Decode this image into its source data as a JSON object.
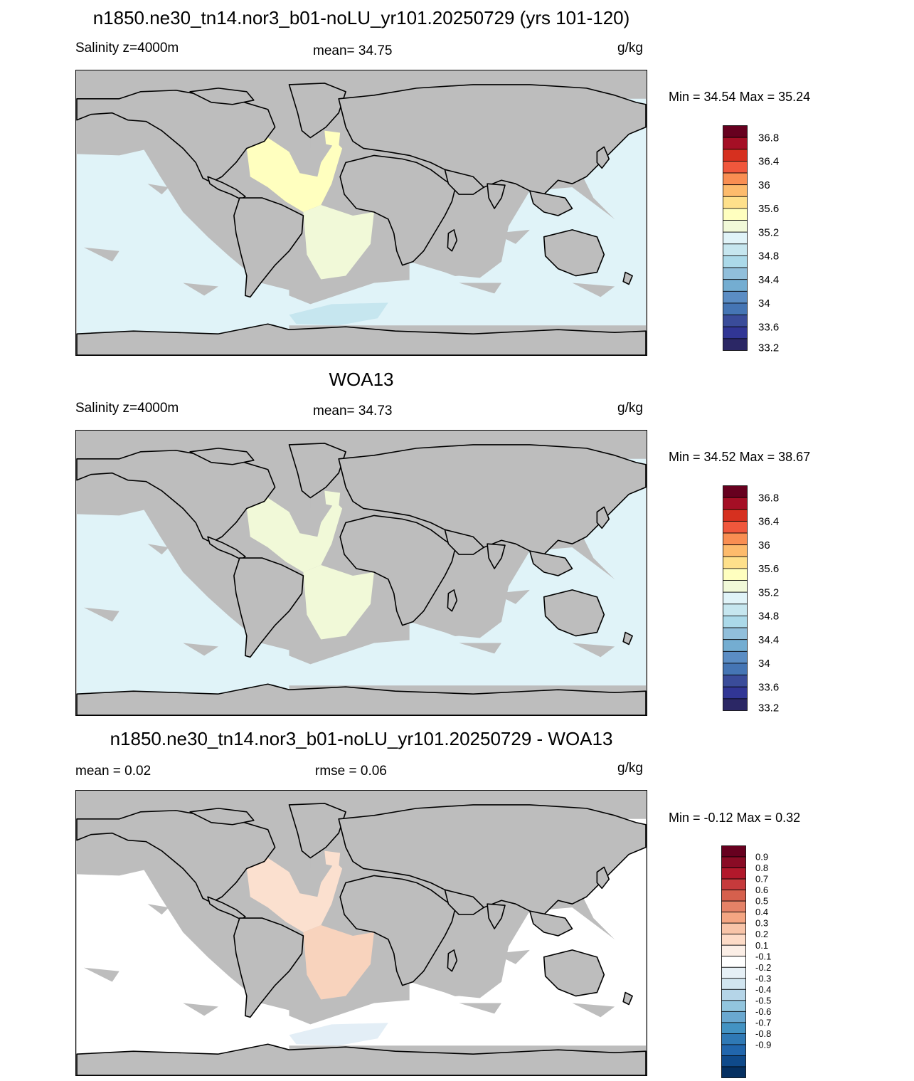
{
  "panels": [
    {
      "title": "n1850.ne30_tn14.nor3_b01-noLU_yr101.20250729 (yrs 101-120)",
      "left_label": "Salinity z=4000m",
      "center_label": "mean=  34.75",
      "units": "g/kg",
      "minmax": "Min =  34.54 Max =  35.24",
      "colorbar": {
        "labels": [
          "36.8",
          "36.4",
          "36",
          "35.6",
          "35.2",
          "34.8",
          "34.4",
          "34",
          "33.6",
          "33.2"
        ],
        "colors": [
          "#67001f",
          "#a50f25",
          "#d6301f",
          "#f0573c",
          "#f98e52",
          "#fdbb6c",
          "#fee08b",
          "#ffffbf",
          "#f1f9d8",
          "#e0f3f8",
          "#c6e6ef",
          "#abd9e9",
          "#91bfdb",
          "#74add1",
          "#5b8dc4",
          "#4575b4",
          "#3a4c9a",
          "#313695",
          "#2b2765"
        ]
      },
      "regions": {
        "ocean": "#e0f3f8",
        "atlantic": "#ffffbf",
        "south_atlantic": "#f1f9d8",
        "ross": "#c6e6ef"
      }
    },
    {
      "title": "WOA13",
      "left_label": "Salinity z=4000m",
      "center_label": "mean=  34.73",
      "units": "g/kg",
      "minmax": "Min =  34.52 Max =  38.67",
      "colorbar": {
        "labels": [
          "36.8",
          "36.4",
          "36",
          "35.6",
          "35.2",
          "34.8",
          "34.4",
          "34",
          "33.6",
          "33.2"
        ],
        "colors": [
          "#67001f",
          "#a50f25",
          "#d6301f",
          "#f0573c",
          "#f98e52",
          "#fdbb6c",
          "#fee08b",
          "#ffffbf",
          "#f1f9d8",
          "#e0f3f8",
          "#c6e6ef",
          "#abd9e9",
          "#91bfdb",
          "#74add1",
          "#5b8dc4",
          "#4575b4",
          "#3a4c9a",
          "#313695",
          "#2b2765"
        ]
      },
      "regions": {
        "ocean": "#e0f3f8",
        "atlantic": "#f1f9d8",
        "south_atlantic": "#f1f9d8",
        "ross": "#e0f3f8"
      }
    },
    {
      "title": "n1850.ne30_tn14.nor3_b01-noLU_yr101.20250729 - WOA13",
      "left_label": "mean =   0.02",
      "center_label": "rmse =   0.06",
      "units": "g/kg",
      "minmax": "Min =  -0.12 Max =   0.32",
      "colorbar": {
        "labels": [
          "0.9",
          "0.8",
          "0.7",
          "0.6",
          "0.5",
          "0.4",
          "0.3",
          "0.2",
          "0.1",
          "-0.1",
          "-0.2",
          "-0.3",
          "-0.4",
          "-0.5",
          "-0.6",
          "-0.7",
          "-0.8",
          "-0.9"
        ],
        "colors": [
          "#67001f",
          "#8a0b25",
          "#b2182b",
          "#c63a3c",
          "#d6604d",
          "#e58267",
          "#f4a582",
          "#f8c4a8",
          "#fddbc7",
          "#fbeee6",
          "#ffffff",
          "#e6f0f6",
          "#d1e5f0",
          "#b5d5e8",
          "#92c5de",
          "#6aa8d0",
          "#4393c3",
          "#2f79b5",
          "#2166ac",
          "#0f4a8a",
          "#053061"
        ]
      },
      "regions": {
        "ocean": "#ffffff",
        "atlantic": "#fbe0cf",
        "south_atlantic": "#f8d3bd",
        "ross": "#e3eef6"
      }
    }
  ]
}
